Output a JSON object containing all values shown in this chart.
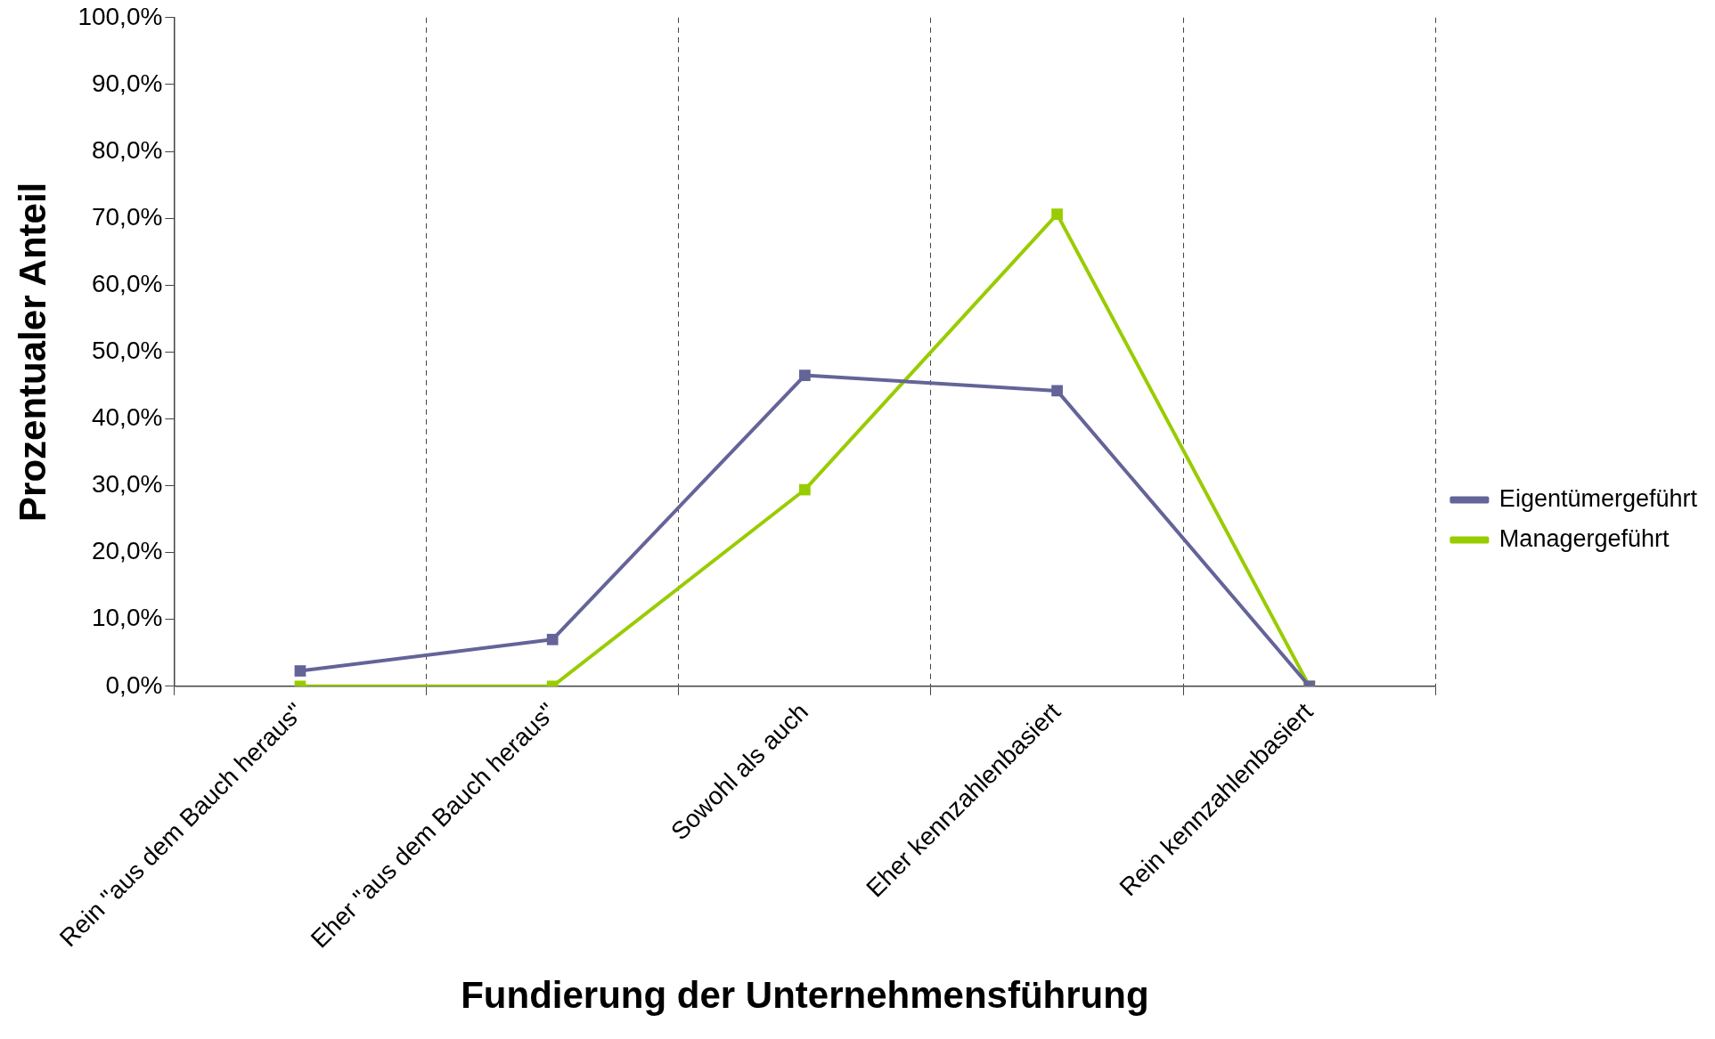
{
  "chart_data": {
    "type": "line",
    "xlabel": "Fundierung der Unternehmensführung",
    "ylabel": "Prozentualer Anteil",
    "categories": [
      "Rein \"aus dem Bauch heraus\"",
      "Eher \"aus dem Bauch heraus\"",
      "Sowohl als auch",
      "Eher kennzahlenbasiert",
      "Rein kennzahlenbasiert"
    ],
    "series": [
      {
        "name": "Eigentümergeführt",
        "color": "#646499",
        "values": [
          2.3,
          7.0,
          46.5,
          44.2,
          0
        ]
      },
      {
        "name": "Managergeführt",
        "color": "#99cc00",
        "values": [
          0,
          0,
          29.4,
          70.6,
          0
        ]
      }
    ],
    "ylim": [
      0,
      100
    ],
    "yticks": [
      {
        "value": 0,
        "label": "0,0%"
      },
      {
        "value": 10,
        "label": "10,0%"
      },
      {
        "value": 20,
        "label": "20,0%"
      },
      {
        "value": 30,
        "label": "30,0%"
      },
      {
        "value": 40,
        "label": "40,0%"
      },
      {
        "value": 50,
        "label": "50,0%"
      },
      {
        "value": 60,
        "label": "60,0%"
      },
      {
        "value": 70,
        "label": "70,0%"
      },
      {
        "value": 80,
        "label": "80,0%"
      },
      {
        "value": 90,
        "label": "90,0%"
      },
      {
        "value": 100,
        "label": "100,0%"
      }
    ],
    "grid": "x",
    "legend": "right",
    "marker": "square",
    "line_style": "solid"
  }
}
